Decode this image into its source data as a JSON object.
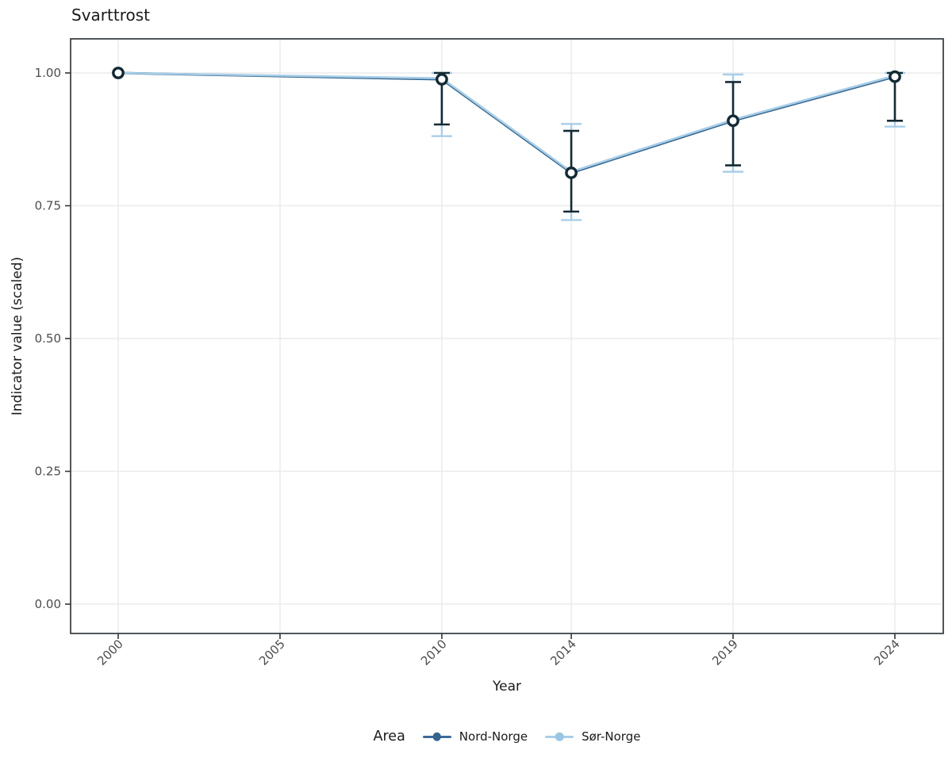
{
  "chart_data": {
    "type": "line",
    "title": "Svarttrost",
    "xlabel": "Year",
    "ylabel": "Indicator value (scaled)",
    "legend_title": "Area",
    "legend_position": "bottom",
    "grid": true,
    "x_domain": [
      2000,
      2024
    ],
    "ylim": [
      0,
      1
    ],
    "x_ticks": [
      2000,
      2005,
      2010,
      2014,
      2019,
      2024
    ],
    "x_tick_labels": [
      "2000",
      "2005",
      "2010",
      "2014",
      "2019",
      "2024"
    ],
    "y_ticks": [
      0,
      0.25,
      0.5,
      0.75,
      1
    ],
    "y_tick_labels": [
      "0.00",
      "0.25",
      "0.50",
      "0.75",
      "1.00"
    ],
    "x": [
      2000,
      2010,
      2014,
      2019,
      2024
    ],
    "series": [
      {
        "name": "Nord-Norge",
        "color": "#3A6B9B",
        "legend_dot_color": "#35648F",
        "line_color": "#38678F",
        "errorbar_color": "#142B35",
        "values": [
          1.0,
          0.988,
          0.812,
          0.91,
          0.993
        ],
        "lower": [
          null,
          0.903,
          0.739,
          0.826,
          0.91
        ],
        "upper": [
          null,
          1.0,
          0.891,
          0.983,
          1.0
        ]
      },
      {
        "name": "Sør-Norge",
        "color": "#A8CEE8",
        "legend_dot_color": "#9AC6E4",
        "line_color": "#A8CEE8",
        "errorbar_color": "#A8CEE8",
        "values": [
          1.0,
          0.99,
          0.814,
          0.912,
          0.995
        ],
        "lower": [
          null,
          0.881,
          0.723,
          0.814,
          0.899
        ],
        "upper": [
          null,
          1.0,
          0.904,
          0.997,
          1.0
        ]
      }
    ],
    "style": {
      "background": "#FFFFFF",
      "panel_border": "#3E4347",
      "gridline": "#EBEBEB",
      "tick_color": "#333333",
      "tick_label_color": "#4D4D4D",
      "title_color": "#1A1A1A",
      "axis_label_color": "#1A1A1A",
      "point_outline": "#132A34",
      "point_fill": "#FFFFFF"
    }
  }
}
